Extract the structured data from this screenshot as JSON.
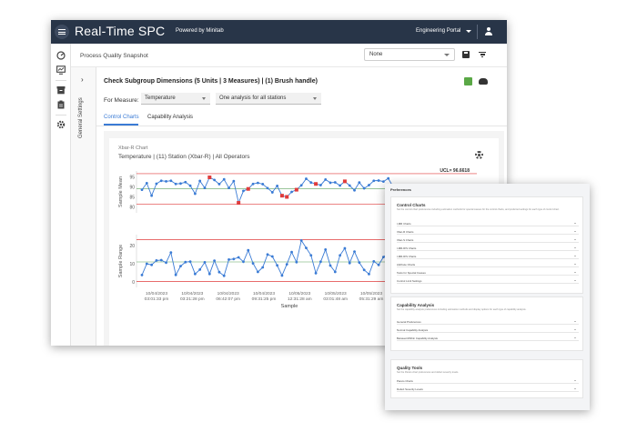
{
  "app": {
    "title": "Real-Time SPC",
    "powered_by": "Powered by Minitab",
    "portal": "Engineering Portal"
  },
  "header": {
    "page_title": "Process Quality Snapshot",
    "dropdown_value": "None"
  },
  "side_panel": {
    "label": "General Settings"
  },
  "main": {
    "title": "Check Subgroup Dimensions (5 Units | 3 Measures) | (1) Brush handle)",
    "measure_label": "For Measure:",
    "measure_value": "Temperature",
    "analysis_value": "One analysis for all stations",
    "tabs": [
      {
        "label": "Control Charts",
        "active": true
      },
      {
        "label": "Capability Analysis",
        "active": false
      }
    ]
  },
  "chart_data": {
    "type": "line",
    "chart_label": "Xbar-R Chart",
    "subtitle": "Temperature | (11) Station (Xbar-R) | All Operators",
    "xlabel": "Sample",
    "x_ticks": [
      [
        "10/04/2023",
        "03:01:33 pm"
      ],
      [
        "10/04/2023",
        "03:21:28 pm"
      ],
      [
        "10/04/2023",
        "06:42:07 pm"
      ],
      [
        "10/04/2023",
        "09:31:25 pm"
      ],
      [
        "10/05/2023",
        "12:31:28 am"
      ],
      [
        "10/05/2023",
        "03:01:48 am"
      ],
      [
        "10/05/2023",
        "05:31:29 am"
      ]
    ],
    "mean_chart": {
      "ylabel": "Sample Mean",
      "yticks": [
        80,
        85,
        90,
        95
      ],
      "ylim": [
        77,
        98
      ],
      "ucl_label": "UCL= 96.6618",
      "ucl": 96.66,
      "center": 89,
      "lcl": 81.3,
      "values": [
        88.6,
        91.9,
        85.6,
        91.6,
        93.1,
        92.8,
        93.1,
        91.5,
        91.7,
        92.4,
        90.6,
        86.6,
        93.0,
        89.5,
        94.8,
        93.5,
        91.4,
        93.8,
        89.5,
        92.9,
        82.0,
        88.0,
        89.0,
        91.5,
        92.0,
        91.4,
        89.4,
        87.3,
        90.5,
        85.6,
        85.0,
        87.5,
        88.6,
        90.8,
        94.1,
        92.2,
        91.5,
        90.9,
        93.7,
        92.1,
        92.3,
        90.7,
        92.8,
        90.7,
        88.3,
        92.2,
        89.3,
        90.9,
        93.1,
        93.2,
        92.7,
        94.3,
        90.0
      ],
      "out_of_control_points": [
        14,
        20,
        22,
        29,
        30,
        32,
        36,
        42
      ]
    },
    "range_chart": {
      "ylabel": "Sample Range",
      "yticks": [
        0,
        10,
        20
      ],
      "ylim": [
        -3,
        26
      ],
      "ucl": 23.2,
      "center": 11.0,
      "lcl": 0.2,
      "values": [
        3.8,
        10.0,
        9.4,
        11.8,
        12.0,
        10.6,
        16.2,
        3.9,
        8.7,
        10.9,
        11.2,
        4.4,
        6.8,
        10.8,
        4.4,
        11.7,
        5.4,
        3.4,
        12.3,
        12.6,
        13.5,
        11.1,
        17.4,
        10.2,
        5.5,
        8.0,
        15.1,
        14.0,
        9.1,
        3.5,
        9.7,
        16.4,
        10.9,
        22.8,
        18.7,
        14.6,
        4.8,
        11.1,
        17.8,
        9.0,
        5.5,
        14.6,
        18.5,
        10.4,
        16.7,
        10.7,
        6.6,
        4.3,
        11.3,
        9.4,
        13.7,
        15.6,
        6.0
      ]
    }
  },
  "preferences": {
    "title": "Preferences",
    "sections": [
      {
        "heading": "Control Charts",
        "description": "Set the control chart preferences including estimation methods for special causes for the control charts, and preferred settings for each type of control chart.",
        "rows": [
          "I-MR Charts",
          "Xbar-R Charts",
          "Xbar-S Charts",
          "I-MR-R/S Charts",
          "I-MR-R/S Charts",
          "Attribute Charts",
          "Tests for Special Causes",
          "Control Limit Settings"
        ]
      },
      {
        "heading": "Capability Analysis",
        "description": "Set the capability analysis preferences including estimation methods and display options for each type of capability analysis.",
        "rows": [
          "General Preferences",
          "Normal Capability Analysis",
          "Between/Within Capability Analysis"
        ]
      },
      {
        "heading": "Quality Tools",
        "description": "Set the Pareto chart preferences and defect severity levels.",
        "rows": [
          "Pareto Charts",
          "Defect Severity Levels"
        ]
      }
    ]
  },
  "colors": {
    "topbar": "#283548",
    "accent_blue": "#3a7bd5",
    "series": "#3a7bd5",
    "limit_line": "#e03b3b",
    "out_of_control": "#e03b3b"
  }
}
